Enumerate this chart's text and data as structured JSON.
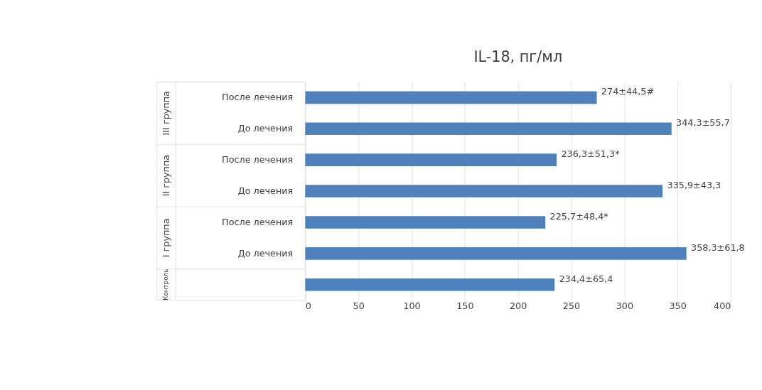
{
  "chart_data": {
    "type": "bar",
    "orientation": "horizontal",
    "title": "IL-18, пг/мл",
    "categories": [
      "После лечения",
      "До лечения",
      "После лечения",
      "До лечения",
      "После лечения",
      "До лечения",
      null
    ],
    "values": [
      274,
      344.3,
      236.3,
      335.9,
      225.7,
      358.3,
      234.4
    ],
    "value_labels": [
      "274±44,5#",
      "344,3±55,7",
      "236,3±51,3*",
      "335,9±43,3",
      "225,7±48,4*",
      "358,3±61,8",
      "234,4±65,4"
    ],
    "color": "#4f81bd",
    "xlim": [
      0,
      400
    ],
    "xticks": [
      0,
      50,
      100,
      150,
      200,
      250,
      300,
      350,
      400
    ],
    "grid": "x",
    "annotations": [
      "III группа",
      "II группа",
      "I группа",
      "Контроль"
    ]
  }
}
